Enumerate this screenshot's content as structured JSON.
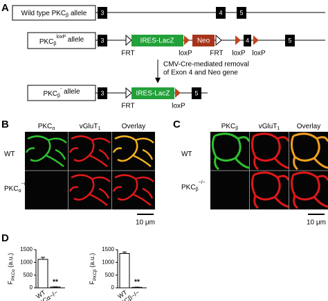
{
  "panel_a": {
    "letter": "A",
    "wild_type": {
      "label": {
        "text": "Wild type PKC",
        "sub": "β",
        "after": " allele"
      },
      "exons": [
        "3",
        "4",
        "5"
      ]
    },
    "floxed": {
      "label": {
        "text": "PKC",
        "sub": "β",
        "sup": "loxP",
        "after": " allele"
      },
      "exons": [
        "3",
        "4",
        "5"
      ],
      "ires": "IRES-LacZ",
      "neo": "Neo",
      "sites": [
        "FRT",
        "loxP",
        "FRT",
        "loxP",
        "loxP"
      ]
    },
    "arrow_text": [
      "CMV-Cre-mediated removal",
      "of Exon 4 and Neo gene"
    ],
    "knockout": {
      "label": {
        "text": "PKC",
        "sub": "β",
        "sup": "-",
        "after": " allele"
      },
      "exons": [
        "3",
        "5"
      ],
      "ires": "IRES-LacZ",
      "sites": [
        "FRT",
        "loxP"
      ]
    }
  },
  "panel_b": {
    "letter": "B",
    "columns": [
      {
        "text": "PKC",
        "sub": "α"
      },
      {
        "text": "vGluT",
        "sub": "1"
      },
      {
        "text": "Overlay"
      }
    ],
    "rows": [
      {
        "text": "WT"
      },
      {
        "text": "PKC",
        "sub": "α",
        "sup": "−/−"
      }
    ],
    "scale_bar": "10 μm"
  },
  "panel_c": {
    "letter": "C",
    "columns": [
      {
        "text": "PKC",
        "sub": "β"
      },
      {
        "text": "vGluT",
        "sub": "1"
      },
      {
        "text": "Overlay"
      }
    ],
    "rows": [
      {
        "text": "WT"
      },
      {
        "text": "PKC",
        "sub": "β",
        "sup": "−/−"
      }
    ],
    "scale_bar": "10 μm"
  },
  "panel_d": {
    "letter": "D"
  },
  "chart_data": [
    {
      "type": "bar",
      "y_label": {
        "text": "F",
        "sub": "PKCα",
        "after": " (a.u.)"
      },
      "categories": [
        "WT",
        "PKCα−/−"
      ],
      "values": [
        1120,
        30
      ],
      "errors": [
        80,
        10
      ],
      "color": "#ffffff",
      "ylim": [
        0,
        1500
      ],
      "yticks": [
        0,
        500,
        1000,
        1500
      ],
      "annotation": "**"
    },
    {
      "type": "bar",
      "y_label": {
        "text": "F",
        "sub": "PKCβ",
        "after": " (a.u.)"
      },
      "categories": [
        "WT",
        "PKCβ−/−"
      ],
      "values": [
        1350,
        20
      ],
      "errors": [
        60,
        8
      ],
      "color": "#ffffff",
      "ylim": [
        0,
        1500
      ],
      "yticks": [
        0,
        500,
        1000,
        1500
      ],
      "annotation": "**"
    }
  ]
}
